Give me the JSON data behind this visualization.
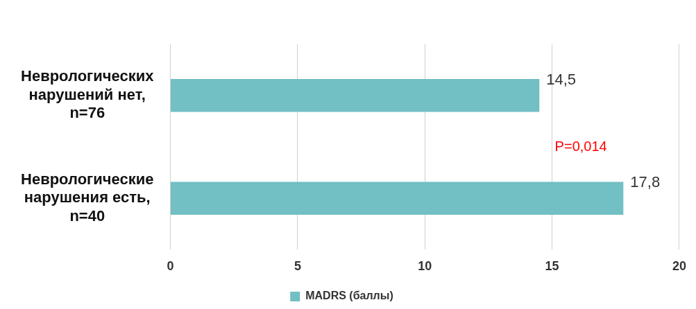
{
  "chart_data": {
    "type": "bar",
    "orientation": "horizontal",
    "categories": [
      "Неврологических нарушений нет, n=76",
      "Неврологические нарушения есть, n=40"
    ],
    "series": [
      {
        "name": "MADRS (баллы)",
        "color": "#72bfc4",
        "values": [
          14.5,
          17.8
        ],
        "value_labels": [
          "14,5",
          "17,8"
        ]
      }
    ],
    "xlim": [
      0,
      20
    ],
    "xticks": [
      0,
      5,
      10,
      15,
      20
    ],
    "grid": "x",
    "legend": "bottom",
    "annotations": [
      "P=0,014"
    ]
  }
}
